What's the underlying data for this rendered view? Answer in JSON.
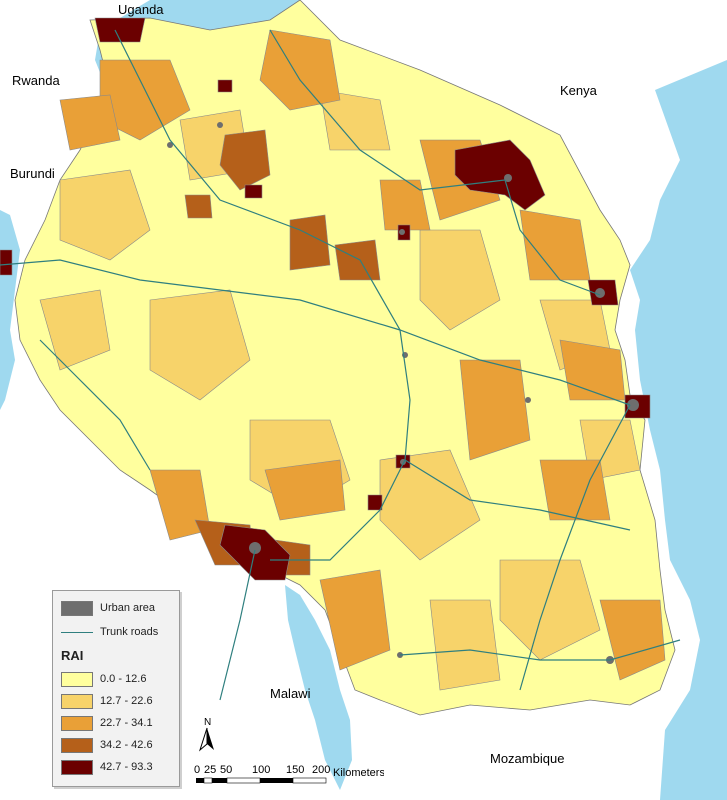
{
  "map": {
    "neighbors": {
      "uganda": "Uganda",
      "rwanda": "Rwanda",
      "burundi": "Burundi",
      "kenya": "Kenya",
      "malawi": "Malawi",
      "mozambique": "Mozambique"
    },
    "colors": {
      "water": "#9fd9ef",
      "land_neighbor": "#ffffff",
      "class1": "#ffff9e",
      "class2": "#f7d36a",
      "class3": "#e9a037",
      "class4": "#b5601a",
      "class5": "#6b0000",
      "urban": "#6e6e6e",
      "roads": "#2f7f7f"
    }
  },
  "legend": {
    "urban_label": "Urban area",
    "roads_label": "Trunk roads",
    "title": "RAI",
    "classes": [
      {
        "label": "0.0 - 12.6",
        "color": "#ffff9e"
      },
      {
        "label": "12.7 - 22.6",
        "color": "#f7d36a"
      },
      {
        "label": "22.7 - 34.1",
        "color": "#e9a037"
      },
      {
        "label": "34.2 - 42.6",
        "color": "#b5601a"
      },
      {
        "label": "42.7 - 93.3",
        "color": "#6b0000"
      }
    ]
  },
  "scale": {
    "ticks": [
      "0",
      "25",
      "50",
      "100",
      "150",
      "200"
    ],
    "unit": "Kilometers"
  },
  "north_arrow": {
    "label": "N"
  }
}
